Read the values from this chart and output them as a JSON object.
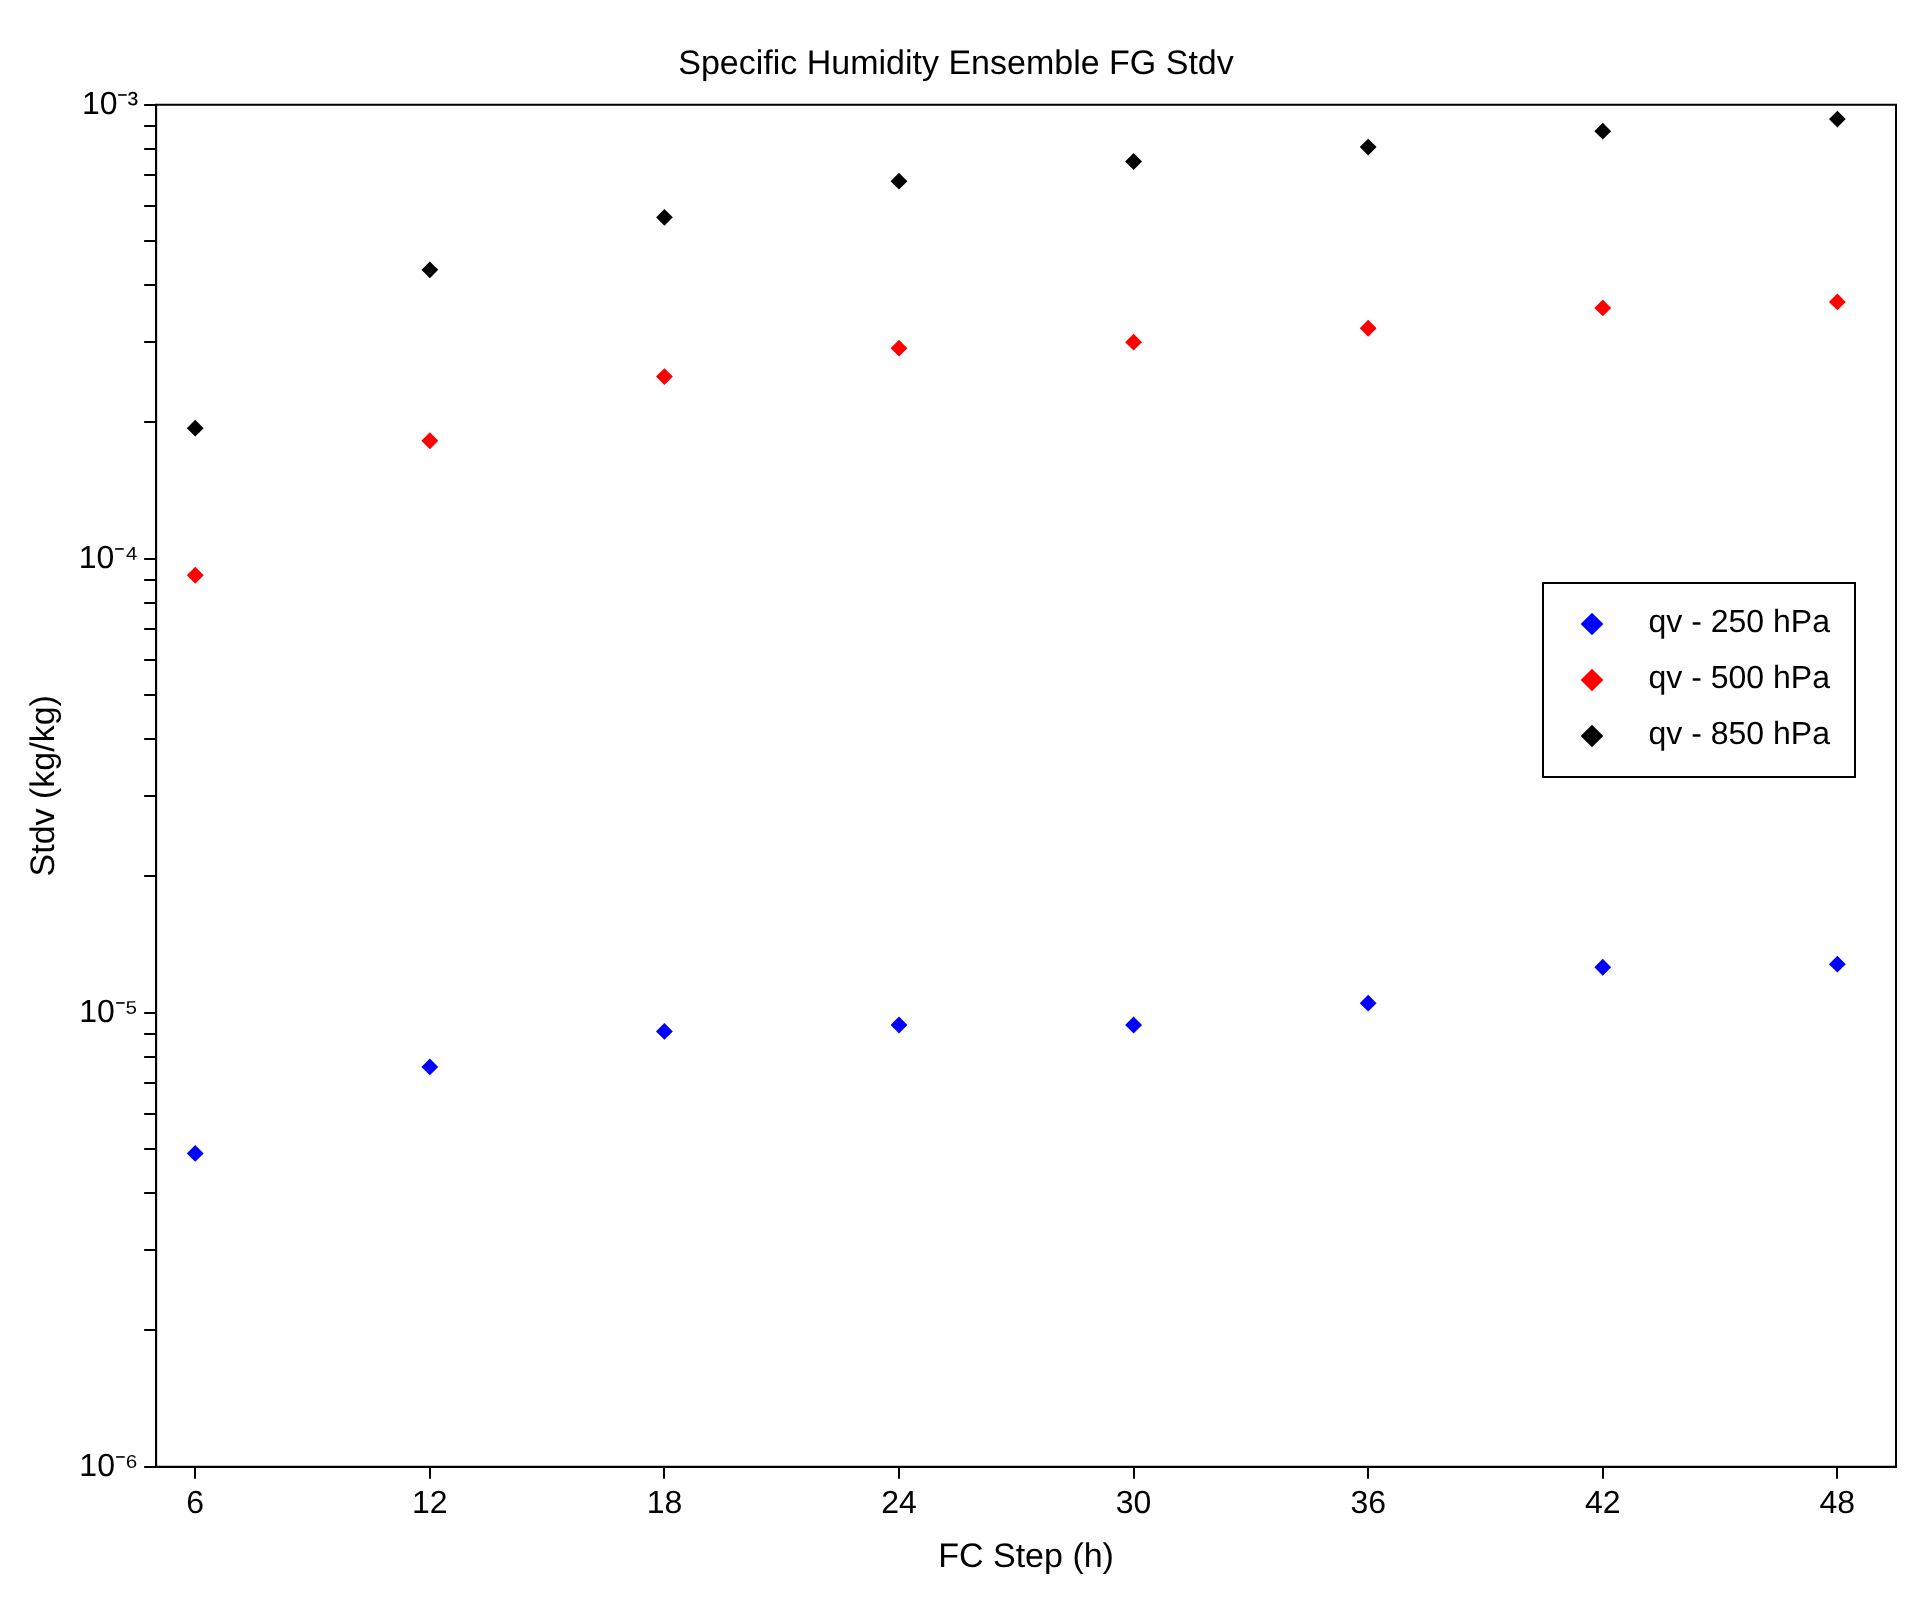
{
  "chart_data": {
    "type": "scatter",
    "title": "Specific Humidity Ensemble FG Stdv",
    "xlabel": "FC Step (h)",
    "ylabel": "Stdv (kg/kg)",
    "x": [
      6,
      12,
      18,
      24,
      30,
      36,
      42,
      48
    ],
    "series": [
      {
        "name": "qv - 250 hPa",
        "color": "#0000ff",
        "values": [
          4.9e-06,
          7.6e-06,
          9.1e-06,
          9.4e-06,
          9.4e-06,
          1.05e-05,
          1.26e-05,
          1.28e-05
        ]
      },
      {
        "name": "qv - 500 hPa",
        "color": "#ff0000",
        "values": [
          9.2e-05,
          0.000182,
          0.000252,
          0.000291,
          0.0003,
          0.000322,
          0.000357,
          0.000368
        ]
      },
      {
        "name": "qv - 850 hPa",
        "color": "#000000",
        "values": [
          0.000194,
          0.000433,
          0.000565,
          0.000679,
          0.00075,
          0.000807,
          0.000875,
          0.00093
        ]
      }
    ],
    "log": "y",
    "xlim": [
      5,
      49.5
    ],
    "xticks": [
      6,
      12,
      18,
      24,
      30,
      36,
      42,
      48
    ],
    "ylim": [
      1e-06,
      0.001
    ],
    "yticks": [
      {
        "value": 1e-06,
        "label": "10⁻⁶"
      },
      {
        "value": 2e-06,
        "label": null
      },
      {
        "value": 3e-06,
        "label": null
      },
      {
        "value": 4e-06,
        "label": null
      },
      {
        "value": 5e-06,
        "label": null
      },
      {
        "value": 6e-06,
        "label": null
      },
      {
        "value": 7e-06,
        "label": null
      },
      {
        "value": 8e-06,
        "label": null
      },
      {
        "value": 9e-06,
        "label": null
      },
      {
        "value": 1e-05,
        "label": "10⁻⁵"
      },
      {
        "value": 2e-05,
        "label": null
      },
      {
        "value": 3e-05,
        "label": null
      },
      {
        "value": 4e-05,
        "label": null
      },
      {
        "value": 5e-05,
        "label": null
      },
      {
        "value": 6e-05,
        "label": null
      },
      {
        "value": 7e-05,
        "label": null
      },
      {
        "value": 8e-05,
        "label": null
      },
      {
        "value": 9e-05,
        "label": null
      },
      {
        "value": 0.0001,
        "label": "10⁻⁴"
      },
      {
        "value": 0.0002,
        "label": null
      },
      {
        "value": 0.0003,
        "label": null
      },
      {
        "value": 0.0004,
        "label": null
      },
      {
        "value": 0.0005,
        "label": null
      },
      {
        "value": 0.0006,
        "label": null
      },
      {
        "value": 0.0007,
        "label": null
      },
      {
        "value": 0.0008,
        "label": null
      },
      {
        "value": 0.0009,
        "label": null
      },
      {
        "value": 0.001,
        "label": "10⁻³"
      }
    ],
    "grid": false,
    "legend": "right",
    "marker": "diamond"
  }
}
